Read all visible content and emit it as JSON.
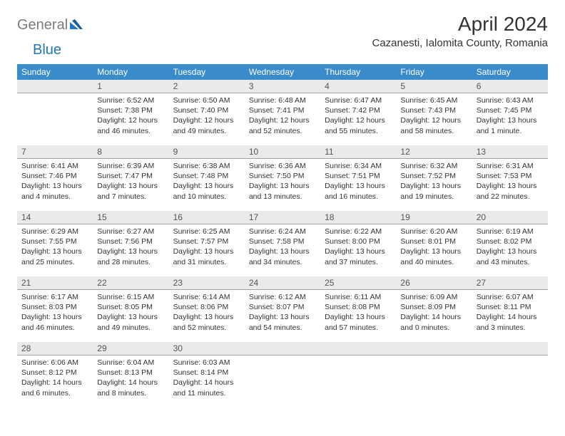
{
  "logo": {
    "text1": "General",
    "text2": "Blue"
  },
  "title": "April 2024",
  "location": "Cazanesti, Ialomita County, Romania",
  "weekdays": [
    "Sunday",
    "Monday",
    "Tuesday",
    "Wednesday",
    "Thursday",
    "Friday",
    "Saturday"
  ],
  "colors": {
    "header_bg": "#3a8bc9",
    "header_fg": "#ffffff",
    "daynum_bg": "#eaeaea",
    "daynum_border": "#9aa3a8",
    "logo_gray": "#7b7b7b",
    "logo_blue": "#2276bb"
  },
  "weeks": [
    [
      {
        "n": "",
        "l1": "",
        "l2": "",
        "l3": "",
        "l4": ""
      },
      {
        "n": "1",
        "l1": "Sunrise: 6:52 AM",
        "l2": "Sunset: 7:38 PM",
        "l3": "Daylight: 12 hours",
        "l4": "and 46 minutes."
      },
      {
        "n": "2",
        "l1": "Sunrise: 6:50 AM",
        "l2": "Sunset: 7:40 PM",
        "l3": "Daylight: 12 hours",
        "l4": "and 49 minutes."
      },
      {
        "n": "3",
        "l1": "Sunrise: 6:48 AM",
        "l2": "Sunset: 7:41 PM",
        "l3": "Daylight: 12 hours",
        "l4": "and 52 minutes."
      },
      {
        "n": "4",
        "l1": "Sunrise: 6:47 AM",
        "l2": "Sunset: 7:42 PM",
        "l3": "Daylight: 12 hours",
        "l4": "and 55 minutes."
      },
      {
        "n": "5",
        "l1": "Sunrise: 6:45 AM",
        "l2": "Sunset: 7:43 PM",
        "l3": "Daylight: 12 hours",
        "l4": "and 58 minutes."
      },
      {
        "n": "6",
        "l1": "Sunrise: 6:43 AM",
        "l2": "Sunset: 7:45 PM",
        "l3": "Daylight: 13 hours",
        "l4": "and 1 minute."
      }
    ],
    [
      {
        "n": "7",
        "l1": "Sunrise: 6:41 AM",
        "l2": "Sunset: 7:46 PM",
        "l3": "Daylight: 13 hours",
        "l4": "and 4 minutes."
      },
      {
        "n": "8",
        "l1": "Sunrise: 6:39 AM",
        "l2": "Sunset: 7:47 PM",
        "l3": "Daylight: 13 hours",
        "l4": "and 7 minutes."
      },
      {
        "n": "9",
        "l1": "Sunrise: 6:38 AM",
        "l2": "Sunset: 7:48 PM",
        "l3": "Daylight: 13 hours",
        "l4": "and 10 minutes."
      },
      {
        "n": "10",
        "l1": "Sunrise: 6:36 AM",
        "l2": "Sunset: 7:50 PM",
        "l3": "Daylight: 13 hours",
        "l4": "and 13 minutes."
      },
      {
        "n": "11",
        "l1": "Sunrise: 6:34 AM",
        "l2": "Sunset: 7:51 PM",
        "l3": "Daylight: 13 hours",
        "l4": "and 16 minutes."
      },
      {
        "n": "12",
        "l1": "Sunrise: 6:32 AM",
        "l2": "Sunset: 7:52 PM",
        "l3": "Daylight: 13 hours",
        "l4": "and 19 minutes."
      },
      {
        "n": "13",
        "l1": "Sunrise: 6:31 AM",
        "l2": "Sunset: 7:53 PM",
        "l3": "Daylight: 13 hours",
        "l4": "and 22 minutes."
      }
    ],
    [
      {
        "n": "14",
        "l1": "Sunrise: 6:29 AM",
        "l2": "Sunset: 7:55 PM",
        "l3": "Daylight: 13 hours",
        "l4": "and 25 minutes."
      },
      {
        "n": "15",
        "l1": "Sunrise: 6:27 AM",
        "l2": "Sunset: 7:56 PM",
        "l3": "Daylight: 13 hours",
        "l4": "and 28 minutes."
      },
      {
        "n": "16",
        "l1": "Sunrise: 6:25 AM",
        "l2": "Sunset: 7:57 PM",
        "l3": "Daylight: 13 hours",
        "l4": "and 31 minutes."
      },
      {
        "n": "17",
        "l1": "Sunrise: 6:24 AM",
        "l2": "Sunset: 7:58 PM",
        "l3": "Daylight: 13 hours",
        "l4": "and 34 minutes."
      },
      {
        "n": "18",
        "l1": "Sunrise: 6:22 AM",
        "l2": "Sunset: 8:00 PM",
        "l3": "Daylight: 13 hours",
        "l4": "and 37 minutes."
      },
      {
        "n": "19",
        "l1": "Sunrise: 6:20 AM",
        "l2": "Sunset: 8:01 PM",
        "l3": "Daylight: 13 hours",
        "l4": "and 40 minutes."
      },
      {
        "n": "20",
        "l1": "Sunrise: 6:19 AM",
        "l2": "Sunset: 8:02 PM",
        "l3": "Daylight: 13 hours",
        "l4": "and 43 minutes."
      }
    ],
    [
      {
        "n": "21",
        "l1": "Sunrise: 6:17 AM",
        "l2": "Sunset: 8:03 PM",
        "l3": "Daylight: 13 hours",
        "l4": "and 46 minutes."
      },
      {
        "n": "22",
        "l1": "Sunrise: 6:15 AM",
        "l2": "Sunset: 8:05 PM",
        "l3": "Daylight: 13 hours",
        "l4": "and 49 minutes."
      },
      {
        "n": "23",
        "l1": "Sunrise: 6:14 AM",
        "l2": "Sunset: 8:06 PM",
        "l3": "Daylight: 13 hours",
        "l4": "and 52 minutes."
      },
      {
        "n": "24",
        "l1": "Sunrise: 6:12 AM",
        "l2": "Sunset: 8:07 PM",
        "l3": "Daylight: 13 hours",
        "l4": "and 54 minutes."
      },
      {
        "n": "25",
        "l1": "Sunrise: 6:11 AM",
        "l2": "Sunset: 8:08 PM",
        "l3": "Daylight: 13 hours",
        "l4": "and 57 minutes."
      },
      {
        "n": "26",
        "l1": "Sunrise: 6:09 AM",
        "l2": "Sunset: 8:09 PM",
        "l3": "Daylight: 14 hours",
        "l4": "and 0 minutes."
      },
      {
        "n": "27",
        "l1": "Sunrise: 6:07 AM",
        "l2": "Sunset: 8:11 PM",
        "l3": "Daylight: 14 hours",
        "l4": "and 3 minutes."
      }
    ],
    [
      {
        "n": "28",
        "l1": "Sunrise: 6:06 AM",
        "l2": "Sunset: 8:12 PM",
        "l3": "Daylight: 14 hours",
        "l4": "and 6 minutes."
      },
      {
        "n": "29",
        "l1": "Sunrise: 6:04 AM",
        "l2": "Sunset: 8:13 PM",
        "l3": "Daylight: 14 hours",
        "l4": "and 8 minutes."
      },
      {
        "n": "30",
        "l1": "Sunrise: 6:03 AM",
        "l2": "Sunset: 8:14 PM",
        "l3": "Daylight: 14 hours",
        "l4": "and 11 minutes."
      },
      {
        "n": "",
        "l1": "",
        "l2": "",
        "l3": "",
        "l4": ""
      },
      {
        "n": "",
        "l1": "",
        "l2": "",
        "l3": "",
        "l4": ""
      },
      {
        "n": "",
        "l1": "",
        "l2": "",
        "l3": "",
        "l4": ""
      },
      {
        "n": "",
        "l1": "",
        "l2": "",
        "l3": "",
        "l4": ""
      }
    ]
  ]
}
